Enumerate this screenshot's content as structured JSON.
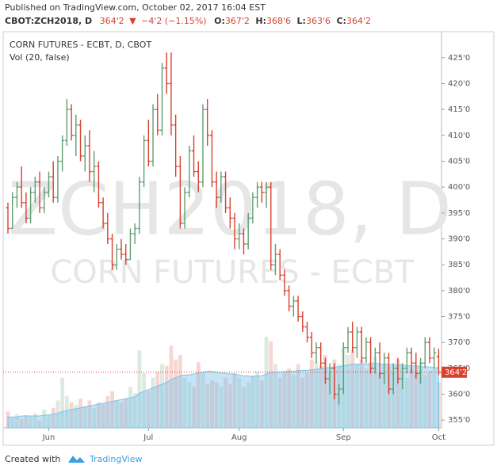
{
  "header": {
    "published": "Published on TradingView.com, October 02, 2017 16:04 EST",
    "symbol": "CBOT:ZCH2018, D",
    "last": "364'2",
    "arrow": "▼",
    "change": "−4'2 (−1.15%)",
    "ohlc": [
      {
        "key": "O:",
        "value": "367'2"
      },
      {
        "key": "H:",
        "value": "368'6"
      },
      {
        "key": "L:",
        "value": "363'6"
      },
      {
        "key": "C:",
        "value": "364'2"
      }
    ]
  },
  "chart_data": {
    "type": "ohlc",
    "title": "CORN FUTURES - ECBT, D, CBOT",
    "watermark": [
      "ZCH2018, D",
      "CORN FUTURES - ECBT"
    ],
    "up_color": "#5e9e72",
    "down_color": "#d9412f",
    "categories": [
      null,
      null,
      null,
      null,
      null,
      null,
      null,
      null,
      null,
      "Jun",
      null,
      null,
      null,
      null,
      null,
      null,
      null,
      null,
      null,
      null,
      null,
      null,
      null,
      null,
      null,
      null,
      null,
      null,
      null,
      null,
      null,
      "Jul",
      null,
      null,
      null,
      null,
      null,
      null,
      null,
      null,
      null,
      null,
      null,
      null,
      null,
      null,
      null,
      null,
      null,
      null,
      null,
      "Aug",
      null,
      null,
      null,
      null,
      null,
      null,
      null,
      null,
      null,
      null,
      null,
      null,
      null,
      null,
      null,
      null,
      null,
      null,
      null,
      null,
      null,
      null,
      "Sep",
      null,
      null,
      null,
      null,
      null,
      null,
      null,
      null,
      null,
      null,
      null,
      null,
      null,
      null,
      null,
      null,
      null,
      null,
      null,
      null,
      "Oct"
    ],
    "open": [
      396,
      392,
      398,
      400,
      397,
      394,
      399,
      401,
      396,
      399,
      402,
      398,
      405,
      409,
      415,
      410,
      412,
      406,
      408,
      403,
      404,
      397,
      393,
      390,
      385,
      388,
      387,
      386,
      391,
      392,
      401,
      409,
      405,
      415,
      411,
      423,
      420,
      412,
      404,
      393,
      399,
      407,
      403,
      401,
      415,
      410,
      401,
      398,
      402,
      396,
      394,
      390,
      391,
      389,
      394,
      398,
      400,
      399,
      400,
      385,
      387,
      383,
      380,
      377,
      378,
      375,
      373,
      371,
      368,
      369,
      366,
      363,
      365,
      360,
      361,
      369,
      372,
      369,
      372,
      367,
      370,
      365,
      368,
      364,
      367,
      361,
      365,
      363,
      365,
      368,
      366,
      364,
      366,
      370,
      367,
      367.25
    ],
    "high": [
      397,
      399,
      401,
      404,
      399,
      400,
      402,
      403,
      400,
      403,
      405,
      406,
      410,
      417,
      416,
      414,
      413,
      410,
      411,
      407,
      405,
      398,
      395,
      391,
      389,
      390,
      389,
      392,
      393,
      402,
      410,
      413,
      416,
      418,
      424,
      426,
      426,
      414,
      406,
      400,
      408,
      410,
      405,
      416,
      417,
      411,
      403,
      403,
      403,
      398,
      395,
      393,
      392,
      395,
      399,
      401,
      401,
      401,
      401,
      389,
      388,
      384,
      381,
      379,
      379,
      376,
      374,
      372,
      370,
      370,
      367,
      366,
      366,
      362,
      370,
      373,
      374,
      373,
      373,
      371,
      371,
      369,
      370,
      368,
      368,
      366,
      367,
      366,
      369,
      369,
      368,
      367,
      371,
      371,
      369,
      368.75
    ],
    "low": [
      391,
      392,
      396,
      396,
      393,
      393,
      397,
      395,
      395,
      398,
      397,
      397,
      403,
      408,
      409,
      406,
      405,
      403,
      401,
      399,
      396,
      392,
      389,
      384,
      384,
      386,
      385,
      386,
      389,
      391,
      400,
      404,
      404,
      410,
      410,
      418,
      410,
      402,
      392,
      392,
      398,
      402,
      399,
      400,
      408,
      400,
      396,
      397,
      395,
      392,
      388,
      388,
      387,
      388,
      393,
      396,
      397,
      396,
      384,
      383,
      382,
      379,
      376,
      375,
      374,
      372,
      370,
      367,
      366,
      365,
      362,
      360,
      359,
      358,
      360,
      368,
      368,
      367,
      366,
      366,
      364,
      364,
      363,
      362,
      360,
      360,
      362,
      361,
      364,
      364,
      363,
      362,
      365,
      366,
      365,
      363.75
    ],
    "close": [
      392,
      398,
      400,
      397,
      394,
      399,
      401,
      396,
      399,
      402,
      398,
      405,
      409,
      415,
      410,
      412,
      406,
      408,
      403,
      404,
      397,
      393,
      390,
      385,
      388,
      387,
      386,
      391,
      392,
      401,
      409,
      405,
      415,
      411,
      423,
      420,
      412,
      404,
      393,
      399,
      407,
      403,
      401,
      415,
      410,
      401,
      398,
      402,
      396,
      394,
      390,
      391,
      389,
      394,
      398,
      400,
      399,
      400,
      385,
      387,
      383,
      380,
      377,
      378,
      375,
      373,
      371,
      368,
      369,
      366,
      363,
      365,
      360,
      361,
      369,
      372,
      369,
      372,
      367,
      370,
      365,
      368,
      364,
      367,
      361,
      365,
      363,
      365,
      368,
      366,
      364,
      366,
      370,
      367,
      368,
      364.25
    ],
    "ylim": [
      353.5,
      428.8
    ],
    "yticks": [
      {
        "value": 355,
        "label": "355'0"
      },
      {
        "value": 360,
        "label": "360'0"
      },
      {
        "value": 365,
        "label": "365'0"
      },
      {
        "value": 370,
        "label": "370'0"
      },
      {
        "value": 375,
        "label": "375'0"
      },
      {
        "value": 380,
        "label": "380'0"
      },
      {
        "value": 385,
        "label": "385'0"
      },
      {
        "value": 390,
        "label": "390'0"
      },
      {
        "value": 395,
        "label": "395'0"
      },
      {
        "value": 400,
        "label": "400'0"
      },
      {
        "value": 405,
        "label": "405'0"
      },
      {
        "value": 410,
        "label": "410'0"
      },
      {
        "value": 415,
        "label": "415'0"
      },
      {
        "value": 420,
        "label": "420'0"
      },
      {
        "value": 425,
        "label": "425'0"
      }
    ],
    "last": {
      "value": 364.25,
      "label": "364'2"
    },
    "volume": {
      "label": "Vol (20, false)",
      "vlim": [
        0,
        100
      ],
      "ma_color": "#7fc4e8",
      "values": [
        18,
        12,
        15,
        10,
        14,
        12,
        16,
        8,
        20,
        14,
        22,
        30,
        55,
        35,
        28,
        25,
        32,
        24,
        30,
        22,
        28,
        26,
        35,
        40,
        30,
        28,
        32,
        45,
        38,
        85,
        60,
        40,
        55,
        62,
        70,
        68,
        90,
        75,
        80,
        55,
        50,
        45,
        72,
        60,
        48,
        52,
        50,
        45,
        55,
        48,
        60,
        55,
        45,
        50,
        58,
        62,
        52,
        100,
        95,
        70,
        55,
        60,
        65,
        58,
        70,
        55,
        60,
        75,
        72,
        68,
        80,
        62,
        75,
        70,
        88,
        80,
        85,
        70,
        75,
        65,
        72,
        78,
        60,
        70,
        68,
        62,
        75,
        70,
        55,
        65,
        60,
        72,
        58,
        62,
        65,
        50
      ],
      "ma": [
        12,
        12,
        12,
        13,
        13,
        13,
        13,
        13,
        14,
        14,
        15,
        16,
        18,
        19,
        20,
        21,
        22,
        23,
        24,
        25,
        26,
        27,
        28,
        29,
        30,
        31,
        32,
        33,
        34,
        38,
        40,
        42,
        44,
        46,
        48,
        50,
        53,
        55,
        57,
        58,
        58,
        59,
        60,
        61,
        62,
        62,
        61,
        60,
        60,
        59,
        59,
        58,
        57,
        57,
        56,
        57,
        57,
        59,
        61,
        61,
        61,
        62,
        62,
        62,
        63,
        63,
        63,
        64,
        64,
        65,
        66,
        66,
        67,
        67,
        68,
        69,
        70,
        70,
        70,
        70,
        70,
        71,
        70,
        70,
        70,
        69,
        69,
        69,
        68,
        68,
        68,
        67,
        67,
        67,
        66,
        66
      ]
    }
  },
  "footer": {
    "created": "Created with",
    "brand": "TradingView"
  }
}
